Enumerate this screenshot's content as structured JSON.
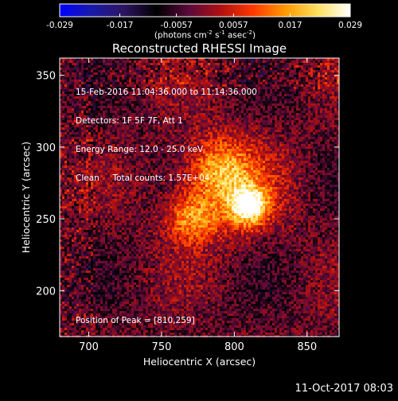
{
  "chart_data": {
    "type": "heatmap",
    "title": "Reconstructed RHESSI Image",
    "xlabel": "Heliocentric X (arcsec)",
    "ylabel": "Heliocentric Y (arcsec)",
    "xlim": [
      680,
      872
    ],
    "ylim": [
      168,
      362
    ],
    "x_ticks": [
      700,
      750,
      800,
      850
    ],
    "y_ticks": [
      200,
      250,
      300,
      350
    ],
    "colorbar": {
      "ticks": [
        "-0.029",
        "-0.017",
        "-0.0057",
        "0.0057",
        "0.017",
        "0.029"
      ],
      "range": [
        -0.029,
        0.029
      ],
      "units_text": "(photons cm",
      "units_parts": [
        "(photons cm",
        "-2",
        " s",
        "-1",
        " asec",
        "-2",
        ")"
      ],
      "colors": [
        "#0000ff",
        "#1a1aa8",
        "#2d1460",
        "#000000",
        "#5a0a3a",
        "#b01010",
        "#ff3a00",
        "#ff9a00",
        "#ffe060",
        "#ffffff"
      ]
    },
    "peak": {
      "x": 810,
      "y": 259,
      "value": 0.029
    },
    "secondary_blobs": [
      {
        "x": 770,
        "y": 250,
        "sigma": 12,
        "value": 0.016
      },
      {
        "x": 790,
        "y": 285,
        "sigma": 15,
        "value": 0.013
      }
    ]
  },
  "info": {
    "line1": "15-Feb-2016 11:04:36.000 to 11:14:36.000",
    "line2": "Detectors: 1F 5F 7F, Att 1",
    "line3": "Energy Range: 12.0 - 25.0 keV",
    "line4": "Clean     Total counts: 1.57E+04"
  },
  "peak_label": "Position of Peak = [810,259]",
  "timestamp": "11-Oct-2017 08:03"
}
